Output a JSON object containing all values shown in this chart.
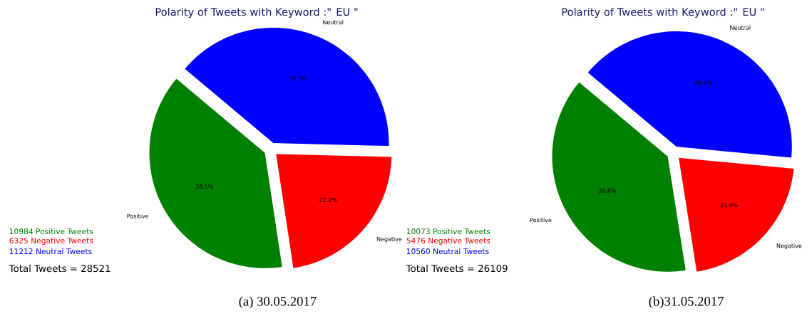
{
  "chart_data": [
    {
      "type": "pie",
      "title": "Polarity of Tweets with Keyword :\" EU \"",
      "categories": [
        "Positive",
        "Negative",
        "Neutral"
      ],
      "values": [
        38.5,
        22.2,
        39.3
      ],
      "colors": [
        "#008000",
        "#ff0000",
        "#0000ff"
      ],
      "value_labels": [
        "38.5%",
        "22.2%",
        "39.3%"
      ],
      "annotations": [
        "10984 Positive Tweets",
        "6325 Negative Tweets",
        "11212 Neutral Tweets",
        "Total Tweets = 28521",
        "(a) 30.05.2017"
      ]
    },
    {
      "type": "pie",
      "title": "Polarity of Tweets with Keyword :\" EU \"",
      "categories": [
        "Positive",
        "Negative",
        "Neutral"
      ],
      "values": [
        38.6,
        21.0,
        40.4
      ],
      "colors": [
        "#008000",
        "#ff0000",
        "#0000ff"
      ],
      "value_labels": [
        "38.6%",
        "21.0%",
        "40.4%"
      ],
      "annotations": [
        "10073 Positive Tweets",
        "5476 Negative Tweets",
        "10560 Neutral Tweets",
        "Total Tweets = 26109",
        "(b)31.05.2017"
      ]
    }
  ]
}
